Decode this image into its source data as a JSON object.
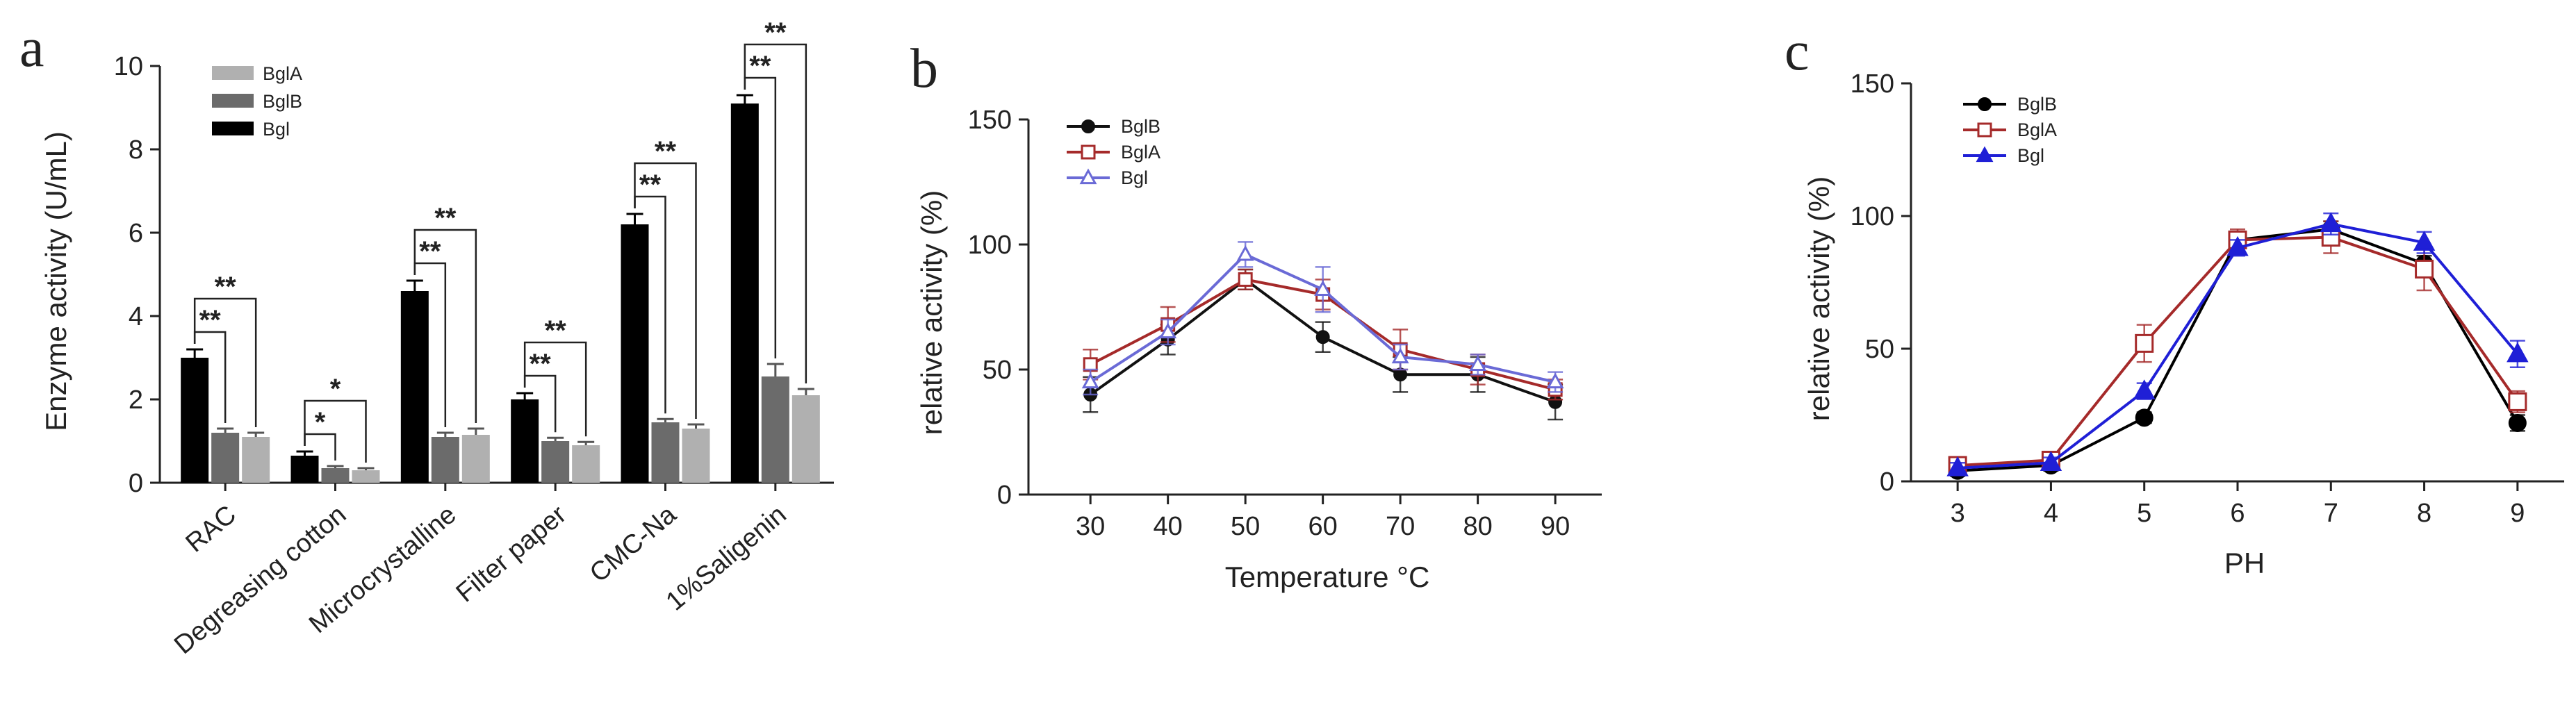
{
  "chart_data": [
    {
      "type": "bar",
      "panel_label": "a",
      "ylabel": "Enzyme activity (U/mL)",
      "xlabel": "",
      "ylim": [
        0,
        10
      ],
      "yticks": [
        0,
        2,
        4,
        6,
        8,
        10
      ],
      "categories": [
        "RAC",
        "Degreasing cotton",
        "Microcrystalline",
        "Filter paper",
        "CMC-Na",
        "1%Saligenin"
      ],
      "series": [
        {
          "name": "Bgl",
          "color": "#000000",
          "values": [
            3.0,
            0.65,
            4.6,
            2.0,
            6.2,
            9.1
          ],
          "errors": [
            0.2,
            0.1,
            0.25,
            0.15,
            0.25,
            0.2
          ]
        },
        {
          "name": "BglB",
          "color": "#6b6b6b",
          "values": [
            1.2,
            0.35,
            1.1,
            1.0,
            1.45,
            2.55
          ],
          "errors": [
            0.1,
            0.05,
            0.1,
            0.08,
            0.08,
            0.3
          ]
        },
        {
          "name": "BglA",
          "color": "#b0b0b0",
          "values": [
            1.1,
            0.3,
            1.15,
            0.9,
            1.3,
            2.1
          ],
          "errors": [
            0.1,
            0.05,
            0.15,
            0.08,
            0.1,
            0.15
          ]
        }
      ],
      "legend_order": [
        "BglA",
        "BglB",
        "Bgl"
      ],
      "significance": [
        {
          "category": 0,
          "pairs": [
            {
              "to": "BglB",
              "label": "**"
            },
            {
              "to": "BglA",
              "label": "**"
            }
          ]
        },
        {
          "category": 1,
          "pairs": [
            {
              "to": "BglB",
              "label": "*"
            },
            {
              "to": "BglA",
              "label": "*"
            }
          ]
        },
        {
          "category": 2,
          "pairs": [
            {
              "to": "BglB",
              "label": "**"
            },
            {
              "to": "BglA",
              "label": "**"
            }
          ]
        },
        {
          "category": 3,
          "pairs": [
            {
              "to": "BglB",
              "label": "**"
            },
            {
              "to": "BglA",
              "label": "**"
            }
          ]
        },
        {
          "category": 4,
          "pairs": [
            {
              "to": "BglB",
              "label": "**"
            },
            {
              "to": "BglA",
              "label": "**"
            }
          ]
        },
        {
          "category": 5,
          "pairs": [
            {
              "to": "BglB",
              "label": "**"
            },
            {
              "to": "BglA",
              "label": "**"
            }
          ]
        }
      ]
    },
    {
      "type": "line",
      "panel_label": "b",
      "xlabel": "Temperature °C",
      "ylabel": "relative activity (%)",
      "x": [
        30,
        40,
        50,
        60,
        70,
        80,
        90
      ],
      "xlim": [
        22,
        96
      ],
      "ylim": [
        0,
        150
      ],
      "yticks": [
        0,
        50,
        100,
        150
      ],
      "series": [
        {
          "name": "BglB",
          "color": "#111111",
          "marker": "circle-filled",
          "values": [
            40,
            62,
            86,
            63,
            48,
            48,
            37
          ],
          "errors": [
            7,
            6,
            4,
            6,
            7,
            7,
            7
          ]
        },
        {
          "name": "BglA",
          "color": "#a52a2a",
          "marker": "square-open",
          "values": [
            52,
            68,
            86,
            80,
            58,
            50,
            42
          ],
          "errors": [
            6,
            7,
            4,
            6,
            8,
            6,
            4
          ]
        },
        {
          "name": "Bgl",
          "color": "#6a6ad6",
          "marker": "triangle-open",
          "values": [
            45,
            65,
            96,
            82,
            55,
            52,
            45
          ],
          "errors": [
            5,
            5,
            5,
            9,
            5,
            4,
            4
          ]
        }
      ]
    },
    {
      "type": "line",
      "panel_label": "c",
      "xlabel": "PH",
      "ylabel": "relative activity (%)",
      "x": [
        3,
        4,
        5,
        6,
        7,
        8,
        9
      ],
      "xlim": [
        2.5,
        9.5
      ],
      "ylim": [
        0,
        150
      ],
      "yticks": [
        0,
        50,
        100,
        150
      ],
      "series": [
        {
          "name": "BglB",
          "color": "#000000",
          "marker": "circle-filled",
          "values": [
            4,
            6,
            24,
            91,
            95,
            82,
            22
          ],
          "errors": [
            2,
            2,
            2,
            3,
            3,
            3,
            3
          ]
        },
        {
          "name": "BglA",
          "color": "#a52a2a",
          "marker": "square-open",
          "values": [
            6,
            8,
            52,
            91,
            92,
            80,
            30
          ],
          "errors": [
            3,
            3,
            7,
            4,
            6,
            8,
            4
          ]
        },
        {
          "name": "Bgl",
          "color": "#1f1fd6",
          "marker": "triangle-filled",
          "values": [
            5,
            7,
            34,
            88,
            97,
            90,
            48
          ],
          "errors": [
            2,
            2,
            3,
            3,
            4,
            4,
            5
          ]
        }
      ]
    }
  ]
}
